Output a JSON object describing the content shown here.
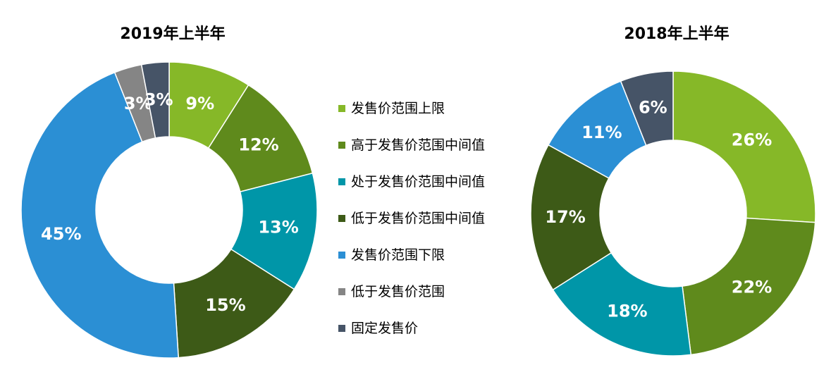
{
  "legend": {
    "items": [
      {
        "label": "发售价范围上限",
        "color": "#86b828"
      },
      {
        "label": "高于发售价范围中间值",
        "color": "#5f8a1c"
      },
      {
        "label": "处于发售价范围中间值",
        "color": "#0096a8"
      },
      {
        "label": "低于发售价范围中间值",
        "color": "#3d5a17"
      },
      {
        "label": "发售价范围下限",
        "color": "#2b8fd4"
      },
      {
        "label": "低于发售价范围",
        "color": "#858585"
      },
      {
        "label": "固定发售价",
        "color": "#465467"
      }
    ]
  },
  "chart_data": [
    {
      "type": "pie",
      "title": "2019年上半年",
      "categories": [
        "发售价范围上限",
        "高于发售价范围中间值",
        "处于发售价范围中间值",
        "低于发售价范围中间值",
        "发售价范围下限",
        "低于发售价范围",
        "固定发售价"
      ],
      "values": [
        9,
        12,
        13,
        15,
        45,
        3,
        3
      ],
      "labels": [
        "9%",
        "12%",
        "13%",
        "15%",
        "45%",
        "3%",
        "3%"
      ]
    },
    {
      "type": "pie",
      "title": "2018年上半年",
      "categories": [
        "发售价范围上限",
        "高于发售价范围中间值",
        "处于发售价范围中间值",
        "低于发售价范围中间值",
        "发售价范围下限",
        "固定发售价"
      ],
      "values": [
        26,
        22,
        18,
        17,
        11,
        6
      ],
      "labels": [
        "26%",
        "22%",
        "18%",
        "17%",
        "11%",
        "6%"
      ]
    }
  ]
}
